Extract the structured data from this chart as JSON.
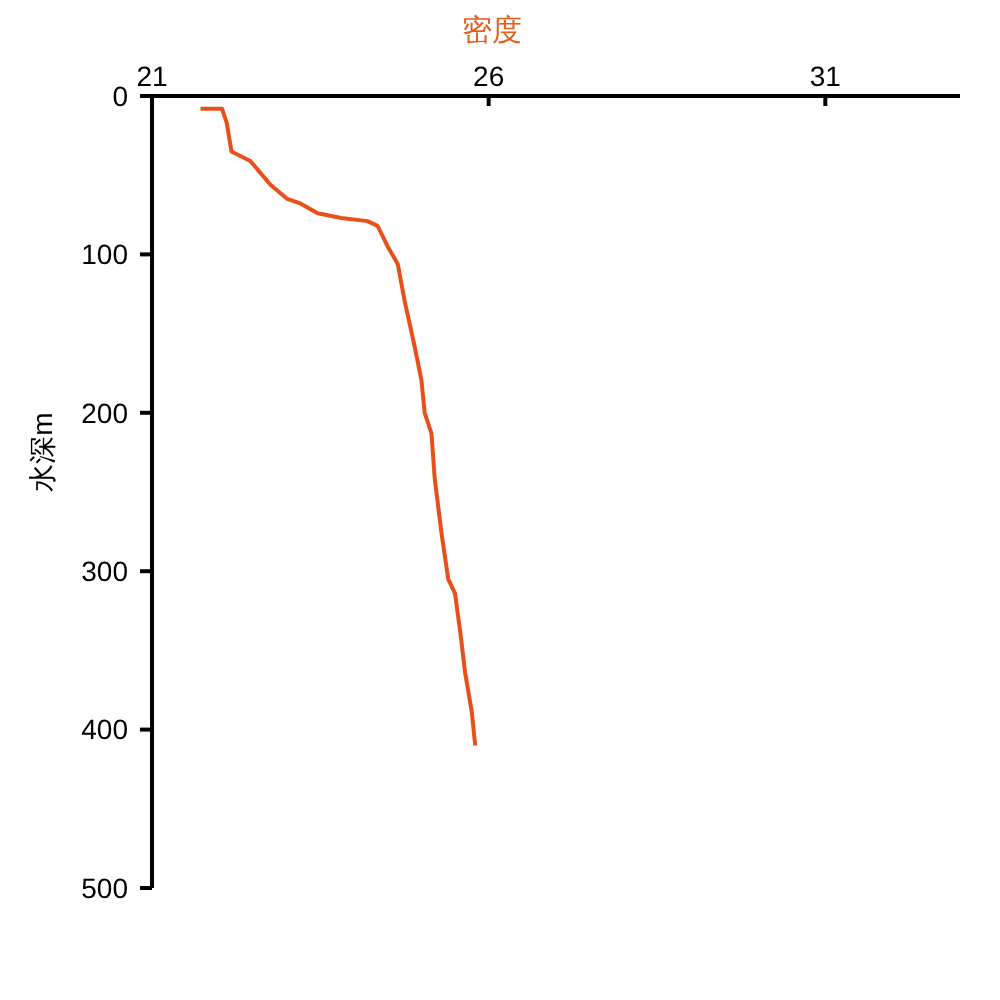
{
  "chart_data": {
    "type": "line",
    "xlabel": "密度",
    "ylabel": "水深m",
    "xlim": [
      21,
      33
    ],
    "xticks": [
      21,
      26,
      31
    ],
    "ylim": [
      500,
      0
    ],
    "yticks": [
      0,
      100,
      200,
      300,
      400,
      500
    ],
    "grid": false,
    "marker": "none",
    "line_style": "solid",
    "series": [
      {
        "color": "#e8501a",
        "x": [
          21.72,
          22.04,
          22.11,
          22.18,
          22.46,
          22.76,
          23.01,
          23.21,
          23.46,
          23.81,
          24.2,
          24.35,
          24.5,
          24.65,
          24.75,
          24.9,
          25.0,
          25.05,
          25.15,
          25.2,
          25.3,
          25.4,
          25.5,
          25.58,
          25.65,
          25.75,
          25.8
        ],
        "values": [
          8,
          8,
          17,
          35,
          41,
          56,
          65,
          68,
          74,
          77,
          79,
          82,
          95,
          106,
          129,
          158,
          179,
          200,
          213,
          242,
          276,
          305,
          314,
          339,
          364,
          389,
          410
        ]
      }
    ]
  }
}
